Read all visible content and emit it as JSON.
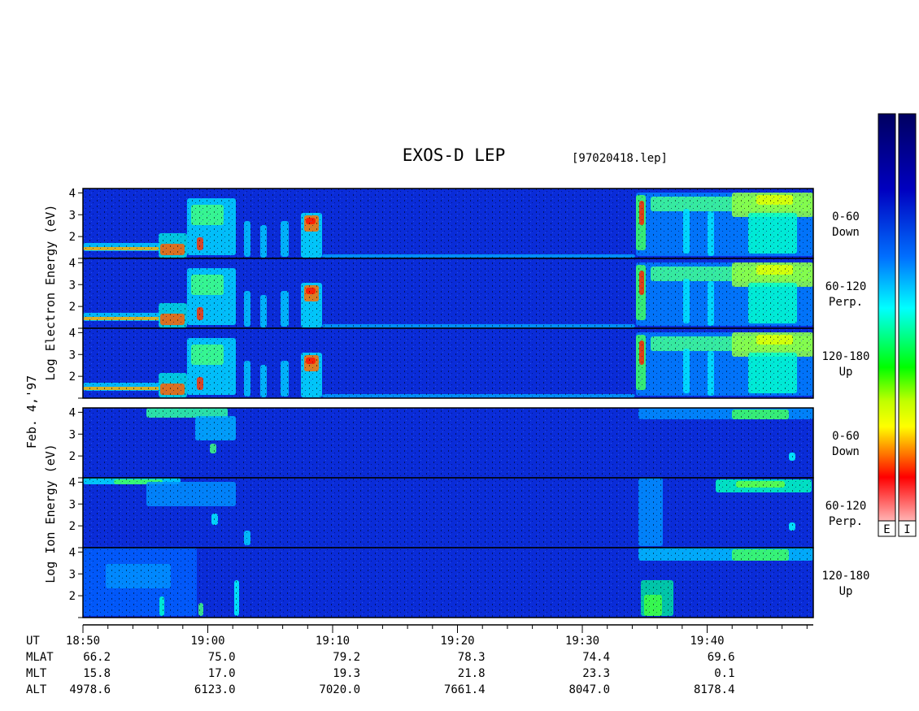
{
  "chart_data": {
    "type": "heatmap",
    "title": "EXOS-D LEP",
    "file_label": "[97020418.lep]",
    "date_label": "Feb. 4,'97",
    "electron_axis_label": "Log Electron Energy (eV)",
    "ion_axis_label": "Log Ion Energy (eV)",
    "y_ticks": [
      "1",
      "2",
      "3",
      "4"
    ],
    "ylim": [
      1,
      4.2
    ],
    "xlim_minutes_after_1850": [
      0,
      58.5
    ],
    "panels": [
      {
        "species": "electron",
        "pitch": "0-60",
        "direction": "Down"
      },
      {
        "species": "electron",
        "pitch": "60-120",
        "direction": "Perp."
      },
      {
        "species": "electron",
        "pitch": "120-180",
        "direction": "Up"
      },
      {
        "species": "ion",
        "pitch": "0-60",
        "direction": "Down"
      },
      {
        "species": "ion",
        "pitch": "60-120",
        "direction": "Perp."
      },
      {
        "species": "ion",
        "pitch": "120-180",
        "direction": "Up"
      }
    ],
    "colorbars": [
      {
        "label": "E"
      },
      {
        "label": "I"
      }
    ],
    "colormap": [
      "#ffffff",
      "#ff0000",
      "#ff8000",
      "#ffff00",
      "#00ff00",
      "#00ffff",
      "#0060ff",
      "#0000a0",
      "#000060"
    ],
    "x_table": {
      "row_labels": [
        "UT",
        "MLAT",
        "MLT",
        "ALT"
      ],
      "columns": [
        {
          "minute": 0,
          "UT": "18:50",
          "MLAT": "66.2",
          "MLT": "15.8",
          "ALT": "4978.6"
        },
        {
          "minute": 10,
          "UT": "19:00",
          "MLAT": "75.0",
          "MLT": "17.0",
          "ALT": "6123.0"
        },
        {
          "minute": 20,
          "UT": "19:10",
          "MLAT": "79.2",
          "MLT": "19.3",
          "ALT": "7020.0"
        },
        {
          "minute": 30,
          "UT": "19:20",
          "MLAT": "78.3",
          "MLT": "21.8",
          "ALT": "7661.4"
        },
        {
          "minute": 40,
          "UT": "19:30",
          "MLAT": "74.4",
          "MLT": "23.3",
          "ALT": "8047.0"
        },
        {
          "minute": 50,
          "UT": "19:40",
          "MLAT": "69.6",
          "MLT": "0.1",
          "ALT": "8178.4"
        }
      ]
    }
  }
}
